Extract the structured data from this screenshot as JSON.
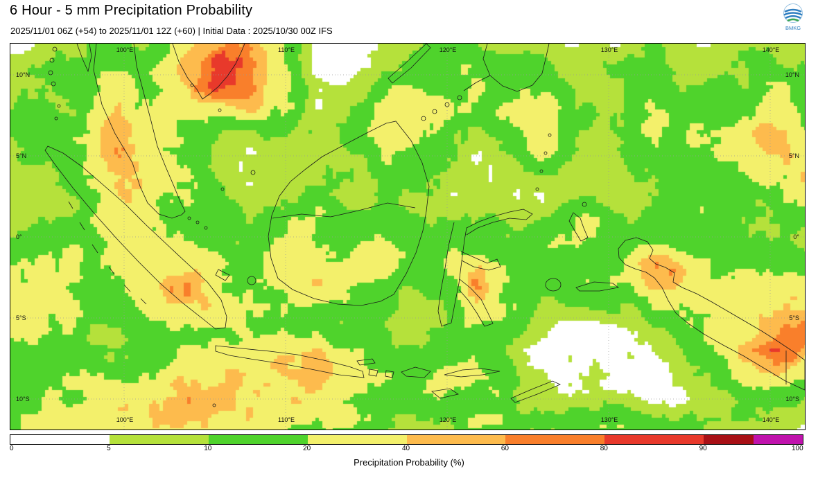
{
  "header": {
    "title": "6 Hour - 5 mm Precipitation Probability",
    "subtitle": "2025/11/01 06Z (+54) to 2025/11/01 12Z (+60) | Initial Data : 2025/10/30 00Z IFS",
    "logo_text": "BMKG"
  },
  "map": {
    "lon_ticks": [
      {
        "value": 100,
        "label": "100°E"
      },
      {
        "value": 110,
        "label": "110°E"
      },
      {
        "value": 120,
        "label": "120°E"
      },
      {
        "value": 130,
        "label": "130°E"
      },
      {
        "value": 140,
        "label": "140°E"
      }
    ],
    "lat_ticks": [
      {
        "value": 10,
        "label": "10°N"
      },
      {
        "value": 5,
        "label": "5°N"
      },
      {
        "value": 0,
        "label": "0°"
      },
      {
        "value": -5,
        "label": "5°S"
      },
      {
        "value": -10,
        "label": "10°S"
      }
    ]
  },
  "colorbar": {
    "caption": "Precipitation Probability (%)",
    "tick_labels": [
      "0",
      "5",
      "10",
      "20",
      "40",
      "60",
      "80",
      "90",
      "100"
    ],
    "segments": [
      {
        "color": "#ffffff",
        "span": 1
      },
      {
        "color": "#b5e13b",
        "span": 1
      },
      {
        "color": "#4fd32c",
        "span": 1
      },
      {
        "color": "#f3f06b",
        "span": 1
      },
      {
        "color": "#fdbb4d",
        "span": 1
      },
      {
        "color": "#f97f2b",
        "span": 1
      },
      {
        "color": "#e8392b",
        "span": 1
      },
      {
        "color": "#a81016",
        "span": 0.5
      },
      {
        "color": "#c013ad",
        "span": 0.5
      }
    ]
  },
  "chart_data": {
    "type": "heatmap",
    "title": "6 Hour - 5 mm Precipitation Probability",
    "valid_period": "2025/11/01 06Z (+54) to 2025/11/01 12Z (+60)",
    "initial_data": "2025/10/30 00Z IFS",
    "unit": "%",
    "lon_range": [
      93.0,
      142.2
    ],
    "lat_range": [
      -11.9,
      11.9
    ],
    "scale_ticks": [
      0,
      5,
      10,
      20,
      40,
      60,
      80,
      90,
      100
    ],
    "scale_colors": [
      "#ffffff",
      "#b5e13b",
      "#4fd32c",
      "#f3f06b",
      "#fdbb4d",
      "#f97f2b",
      "#e8392b",
      "#a81016",
      "#c013ad"
    ],
    "thresholds": [
      {
        "max": 10,
        "color": "#b5e13b"
      },
      {
        "max": 20,
        "color": "#4fd32c"
      },
      {
        "max": 40,
        "color": "#f3f06b"
      },
      {
        "max": 60,
        "color": "#fdbb4d"
      },
      {
        "max": 80,
        "color": "#f97f2b"
      },
      {
        "max": 90,
        "color": "#e8392b"
      },
      {
        "max": 100,
        "color": "#a81016"
      },
      {
        "max": 1000,
        "color": "#c013ad"
      }
    ],
    "noise_seed": 7.31,
    "regions": [
      {
        "lon": 99.0,
        "lat": 7.6,
        "rlon": 7.3,
        "rlat": 5.1,
        "intensity": 22
      },
      {
        "lon": 99.4,
        "lat": 7.0,
        "rlon": 0.95,
        "rlat": 3.0,
        "intensity": 38
      },
      {
        "lon": 106.0,
        "lat": 10.9,
        "rlon": 3.2,
        "rlat": 2.6,
        "intensity": 80
      },
      {
        "lon": 108.4,
        "lat": 8.9,
        "rlon": 2.4,
        "rlat": 1.9,
        "intensity": 24
      },
      {
        "lon": 121.1,
        "lat": 9.4,
        "rlon": 5.2,
        "rlat": 3.6,
        "intensity": 22
      },
      {
        "lon": 125.7,
        "lat": 7.0,
        "rlon": 1.9,
        "rlat": 2.4,
        "intensity": 40
      },
      {
        "lon": 137.6,
        "lat": 6.4,
        "rlon": 6.4,
        "rlat": 4.9,
        "intensity": 22
      },
      {
        "lon": 141.0,
        "lat": 7.4,
        "rlon": 2.4,
        "rlat": 2.6,
        "intensity": 38
      },
      {
        "lon": 142.2,
        "lat": 4.0,
        "rlon": 1.7,
        "rlat": 1.9,
        "intensity": 30
      },
      {
        "lon": 100.7,
        "lat": -0.9,
        "rlon": 5.2,
        "rlat": 4.5,
        "intensity": 22
      },
      {
        "lon": 103.5,
        "lat": -3.2,
        "rlon": 2.6,
        "rlat": 2.1,
        "intensity": 34
      },
      {
        "lon": 113.6,
        "lat": -2.2,
        "rlon": 5.4,
        "rlat": 4.1,
        "intensity": 24
      },
      {
        "lon": 112.1,
        "lat": -2.4,
        "rlon": 2.4,
        "rlat": 2.1,
        "intensity": 38
      },
      {
        "lon": 122.1,
        "lat": -3.5,
        "rlon": 3.0,
        "rlat": 4.1,
        "intensity": 24
      },
      {
        "lon": 121.8,
        "lat": -3.0,
        "rlon": 0.9,
        "rlat": 1.2,
        "intensity": 38
      },
      {
        "lon": 128.2,
        "lat": 0.4,
        "rlon": 2.1,
        "rlat": 1.9,
        "intensity": 18
      },
      {
        "lon": 109.9,
        "lat": -8.2,
        "rlon": 5.8,
        "rlat": 2.1,
        "intensity": 40
      },
      {
        "lon": 110.3,
        "lat": -7.6,
        "rlon": 2.1,
        "rlat": 1.2,
        "intensity": 32
      },
      {
        "lon": 102.8,
        "lat": -10.5,
        "rlon": 8.2,
        "rlat": 3.6,
        "intensity": 38
      },
      {
        "lon": 105.6,
        "lat": -10.5,
        "rlon": 3.2,
        "rlat": 2.1,
        "intensity": 32
      },
      {
        "lon": 93.8,
        "lat": -4.7,
        "rlon": 3.0,
        "rlat": 3.9,
        "intensity": 24
      },
      {
        "lon": 139.5,
        "lat": -5.4,
        "rlon": 4.9,
        "rlat": 3.6,
        "intensity": 48
      },
      {
        "lon": 141.5,
        "lat": -6.2,
        "rlon": 1.9,
        "rlat": 2.1,
        "intensity": 52
      },
      {
        "lon": 133.7,
        "lat": -2.4,
        "rlon": 3.6,
        "rlat": 2.6,
        "intensity": 24
      },
      {
        "lon": 133.0,
        "lat": -1.8,
        "rlon": 1.5,
        "rlat": 1.2,
        "intensity": 34
      },
      {
        "lon": 120.9,
        "lat": -8.8,
        "rlon": 5.6,
        "rlat": 1.7,
        "intensity": 16
      },
      {
        "lon": 131.8,
        "lat": -11.5,
        "rlon": 5.6,
        "rlat": 1.3,
        "intensity": 20
      },
      {
        "lon": 129.2,
        "lat": -3.1,
        "rlon": 2.4,
        "rlat": 1.2,
        "intensity": 16
      },
      {
        "lon": 101.8,
        "lat": 3.2,
        "rlon": 3.0,
        "rlat": 2.8,
        "intensity": 20
      },
      {
        "lon": 111.4,
        "lat": 1.5,
        "rlon": 3.0,
        "rlat": 2.4,
        "intensity": 14
      },
      {
        "lon": 112.1,
        "lat": 6.4,
        "rlon": 3.6,
        "rlat": 3.0,
        "intensity": 9
      },
      {
        "lon": 117.9,
        "lat": 2.9,
        "rlon": 2.6,
        "rlat": 2.1,
        "intensity": 16
      },
      {
        "lon": 117.0,
        "lat": 6.8,
        "rlon": 2.6,
        "rlat": 1.9,
        "intensity": 20
      },
      {
        "lon": 131.6,
        "lat": 8.5,
        "rlon": 3.0,
        "rlat": 2.6,
        "intensity": 18
      },
      {
        "lon": 136.3,
        "lat": 1.2,
        "rlon": 2.6,
        "rlat": 2.1,
        "intensity": 10
      },
      {
        "lon": 125.6,
        "lat": -0.9,
        "rlon": 1.7,
        "rlat": 1.7,
        "intensity": 12
      },
      {
        "lon": 107.6,
        "lat": -4.7,
        "rlon": 2.6,
        "rlat": 1.7,
        "intensity": 14
      },
      {
        "lon": 113.6,
        "lat": -11.2,
        "rlon": 3.4,
        "rlat": 1.3,
        "intensity": 16
      },
      {
        "lon": 122.1,
        "lat": -11.4,
        "rlon": 2.6,
        "rlat": 1.1,
        "intensity": 12
      },
      {
        "lon": 96.4,
        "lat": -12.0,
        "rlon": 3.0,
        "rlat": 1.3,
        "intensity": 16
      }
    ]
  }
}
